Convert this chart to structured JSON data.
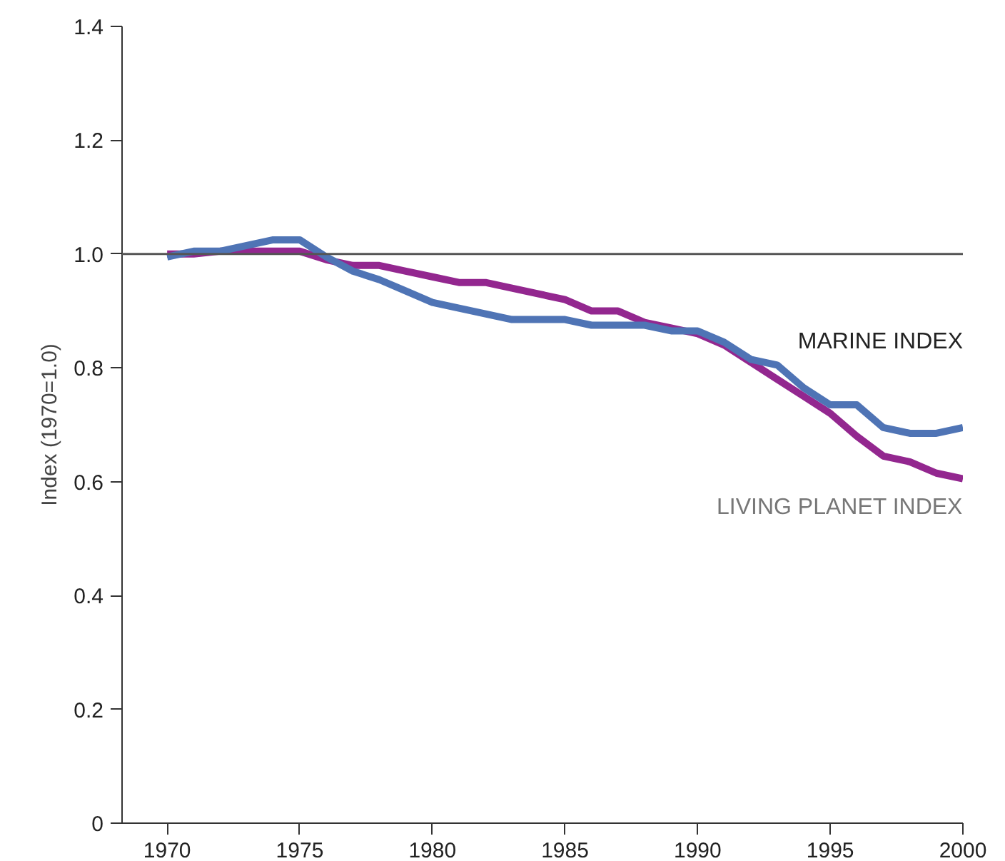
{
  "chart_data": {
    "type": "line",
    "ylabel": "Index (1970=1.0)",
    "x": [
      1970,
      1971,
      1972,
      1973,
      1974,
      1975,
      1976,
      1977,
      1978,
      1979,
      1980,
      1981,
      1982,
      1983,
      1984,
      1985,
      1986,
      1987,
      1988,
      1989,
      1990,
      1991,
      1992,
      1993,
      1994,
      1995,
      1996,
      1997,
      1998,
      1999,
      2000
    ],
    "series": [
      {
        "name": "LIVING PLANET INDEX",
        "color": "#93278f",
        "values": [
          1.0,
          1.0,
          1.005,
          1.005,
          1.005,
          1.005,
          0.99,
          0.98,
          0.98,
          0.97,
          0.96,
          0.95,
          0.95,
          0.94,
          0.93,
          0.92,
          0.9,
          0.9,
          0.88,
          0.87,
          0.86,
          0.84,
          0.81,
          0.78,
          0.75,
          0.72,
          0.68,
          0.645,
          0.635,
          0.615,
          0.605
        ]
      },
      {
        "name": "MARINE INDEX",
        "color": "#4f74b5",
        "values": [
          0.995,
          1.005,
          1.005,
          1.015,
          1.025,
          1.025,
          0.995,
          0.97,
          0.955,
          0.935,
          0.915,
          0.905,
          0.895,
          0.885,
          0.885,
          0.885,
          0.875,
          0.875,
          0.875,
          0.865,
          0.865,
          0.845,
          0.815,
          0.805,
          0.765,
          0.735,
          0.735,
          0.695,
          0.685,
          0.685,
          0.695
        ]
      }
    ],
    "xlim": [
      1968.3,
      2000
    ],
    "ylim": [
      0,
      1.4
    ],
    "xticks": [
      1970,
      1975,
      1980,
      1985,
      1990,
      1995,
      2000
    ],
    "yticks": [
      0,
      0.2,
      0.4,
      0.6,
      0.8,
      {
        "value": 1.0,
        "label": "1.0"
      },
      1.2,
      1.4
    ],
    "ref_lines": [
      {
        "axis": "y",
        "value": 1.0,
        "color": "#555555"
      }
    ],
    "grid": false,
    "marker": "none",
    "line_style": "solid"
  }
}
